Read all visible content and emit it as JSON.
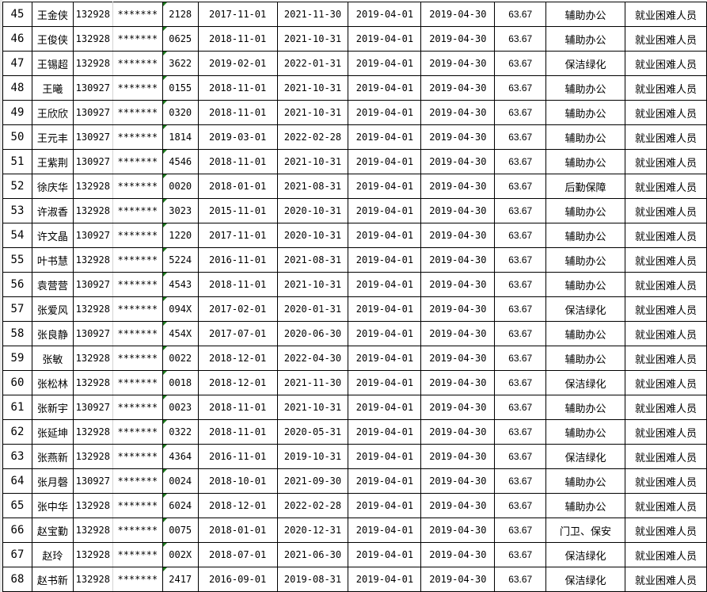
{
  "rows": [
    {
      "no": "45",
      "name": "王金侠",
      "code": "132928",
      "mask": "*******",
      "tail": "2128",
      "start": "2017-11-01",
      "end": "2021-11-30",
      "from": "2019-04-01",
      "to": "2019-04-30",
      "amount": "63.67",
      "job": "辅助办公",
      "category": "就业困难人员"
    },
    {
      "no": "46",
      "name": "王俊侠",
      "code": "132928",
      "mask": "*******",
      "tail": "0625",
      "start": "2018-11-01",
      "end": "2021-10-31",
      "from": "2019-04-01",
      "to": "2019-04-30",
      "amount": "63.67",
      "job": "辅助办公",
      "category": "就业困难人员"
    },
    {
      "no": "47",
      "name": "王锡超",
      "code": "132928",
      "mask": "*******",
      "tail": "3622",
      "start": "2019-02-01",
      "end": "2022-01-31",
      "from": "2019-04-01",
      "to": "2019-04-30",
      "amount": "63.67",
      "job": "保洁绿化",
      "category": "就业困难人员"
    },
    {
      "no": "48",
      "name": "王曦",
      "code": "130927",
      "mask": "*******",
      "tail": "0155",
      "start": "2018-11-01",
      "end": "2021-10-31",
      "from": "2019-04-01",
      "to": "2019-04-30",
      "amount": "63.67",
      "job": "辅助办公",
      "category": "就业困难人员"
    },
    {
      "no": "49",
      "name": "王欣欣",
      "code": "130927",
      "mask": "*******",
      "tail": "0320",
      "start": "2018-11-01",
      "end": "2021-10-31",
      "from": "2019-04-01",
      "to": "2019-04-30",
      "amount": "63.67",
      "job": "辅助办公",
      "category": "就业困难人员"
    },
    {
      "no": "50",
      "name": "王元丰",
      "code": "130927",
      "mask": "*******",
      "tail": "1814",
      "start": "2019-03-01",
      "end": "2022-02-28",
      "from": "2019-04-01",
      "to": "2019-04-30",
      "amount": "63.67",
      "job": "辅助办公",
      "category": "就业困难人员"
    },
    {
      "no": "51",
      "name": "王紫荆",
      "code": "130927",
      "mask": "*******",
      "tail": "4546",
      "start": "2018-11-01",
      "end": "2021-10-31",
      "from": "2019-04-01",
      "to": "2019-04-30",
      "amount": "63.67",
      "job": "辅助办公",
      "category": "就业困难人员"
    },
    {
      "no": "52",
      "name": "徐庆华",
      "code": "132928",
      "mask": "*******",
      "tail": "0020",
      "start": "2018-01-01",
      "end": "2021-08-31",
      "from": "2019-04-01",
      "to": "2019-04-30",
      "amount": "63.67",
      "job": "后勤保障",
      "category": "就业困难人员"
    },
    {
      "no": "53",
      "name": "许淑香",
      "code": "132928",
      "mask": "*******",
      "tail": "3023",
      "start": "2015-11-01",
      "end": "2020-10-31",
      "from": "2019-04-01",
      "to": "2019-04-30",
      "amount": "63.67",
      "job": "辅助办公",
      "category": "就业困难人员"
    },
    {
      "no": "54",
      "name": "许文晶",
      "code": "130927",
      "mask": "*******",
      "tail": "1220",
      "start": "2017-11-01",
      "end": "2020-10-31",
      "from": "2019-04-01",
      "to": "2019-04-30",
      "amount": "63.67",
      "job": "辅助办公",
      "category": "就业困难人员"
    },
    {
      "no": "55",
      "name": "叶书慧",
      "code": "132928",
      "mask": "*******",
      "tail": "5224",
      "start": "2016-11-01",
      "end": "2021-08-31",
      "from": "2019-04-01",
      "to": "2019-04-30",
      "amount": "63.67",
      "job": "辅助办公",
      "category": "就业困难人员"
    },
    {
      "no": "56",
      "name": "袁营营",
      "code": "130927",
      "mask": "*******",
      "tail": "4543",
      "start": "2018-11-01",
      "end": "2021-10-31",
      "from": "2019-04-01",
      "to": "2019-04-30",
      "amount": "63.67",
      "job": "辅助办公",
      "category": "就业困难人员"
    },
    {
      "no": "57",
      "name": "张爱风",
      "code": "132928",
      "mask": "*******",
      "tail": "094X",
      "start": "2017-02-01",
      "end": "2020-01-31",
      "from": "2019-04-01",
      "to": "2019-04-30",
      "amount": "63.67",
      "job": "保洁绿化",
      "category": "就业困难人员"
    },
    {
      "no": "58",
      "name": "张良静",
      "code": "130927",
      "mask": "*******",
      "tail": "454X",
      "start": "2017-07-01",
      "end": "2020-06-30",
      "from": "2019-04-01",
      "to": "2019-04-30",
      "amount": "63.67",
      "job": "辅助办公",
      "category": "就业困难人员"
    },
    {
      "no": "59",
      "name": "张敏",
      "code": "132928",
      "mask": "*******",
      "tail": "0022",
      "start": "2018-12-01",
      "end": "2022-04-30",
      "from": "2019-04-01",
      "to": "2019-04-30",
      "amount": "63.67",
      "job": "辅助办公",
      "category": "就业困难人员"
    },
    {
      "no": "60",
      "name": "张松林",
      "code": "132928",
      "mask": "*******",
      "tail": "0018",
      "start": "2018-12-01",
      "end": "2021-11-30",
      "from": "2019-04-01",
      "to": "2019-04-30",
      "amount": "63.67",
      "job": "保洁绿化",
      "category": "就业困难人员"
    },
    {
      "no": "61",
      "name": "张新宇",
      "code": "130927",
      "mask": "*******",
      "tail": "0023",
      "start": "2018-11-01",
      "end": "2021-10-31",
      "from": "2019-04-01",
      "to": "2019-04-30",
      "amount": "63.67",
      "job": "辅助办公",
      "category": "就业困难人员"
    },
    {
      "no": "62",
      "name": "张延坤",
      "code": "132928",
      "mask": "*******",
      "tail": "0322",
      "start": "2018-11-01",
      "end": "2020-05-31",
      "from": "2019-04-01",
      "to": "2019-04-30",
      "amount": "63.67",
      "job": "辅助办公",
      "category": "就业困难人员"
    },
    {
      "no": "63",
      "name": "张燕新",
      "code": "132928",
      "mask": "*******",
      "tail": "4364",
      "start": "2016-11-01",
      "end": "2019-10-31",
      "from": "2019-04-01",
      "to": "2019-04-30",
      "amount": "63.67",
      "job": "保洁绿化",
      "category": "就业困难人员"
    },
    {
      "no": "64",
      "name": "张月磬",
      "code": "130927",
      "mask": "*******",
      "tail": "0024",
      "start": "2018-10-01",
      "end": "2021-09-30",
      "from": "2019-04-01",
      "to": "2019-04-30",
      "amount": "63.67",
      "job": "辅助办公",
      "category": "就业困难人员"
    },
    {
      "no": "65",
      "name": "张中华",
      "code": "132928",
      "mask": "*******",
      "tail": "6024",
      "start": "2018-12-01",
      "end": "2022-02-28",
      "from": "2019-04-01",
      "to": "2019-04-30",
      "amount": "63.67",
      "job": "辅助办公",
      "category": "就业困难人员"
    },
    {
      "no": "66",
      "name": "赵宝勤",
      "code": "132928",
      "mask": "*******",
      "tail": "0075",
      "start": "2018-01-01",
      "end": "2020-12-31",
      "from": "2019-04-01",
      "to": "2019-04-30",
      "amount": "63.67",
      "job": "门卫、保安",
      "category": "就业困难人员"
    },
    {
      "no": "67",
      "name": "赵玲",
      "code": "132928",
      "mask": "*******",
      "tail": "002X",
      "start": "2018-07-01",
      "end": "2021-06-30",
      "from": "2019-04-01",
      "to": "2019-04-30",
      "amount": "63.67",
      "job": "保洁绿化",
      "category": "就业困难人员"
    },
    {
      "no": "68",
      "name": "赵书新",
      "code": "132928",
      "mask": "*******",
      "tail": "2417",
      "start": "2016-09-01",
      "end": "2019-08-31",
      "from": "2019-04-01",
      "to": "2019-04-30",
      "amount": "63.67",
      "job": "保洁绿化",
      "category": "就业困难人员"
    }
  ],
  "colors": {
    "grid": "#000000",
    "light_grid": "#d4d4d4",
    "text_indicator": "#1e7b1e"
  }
}
